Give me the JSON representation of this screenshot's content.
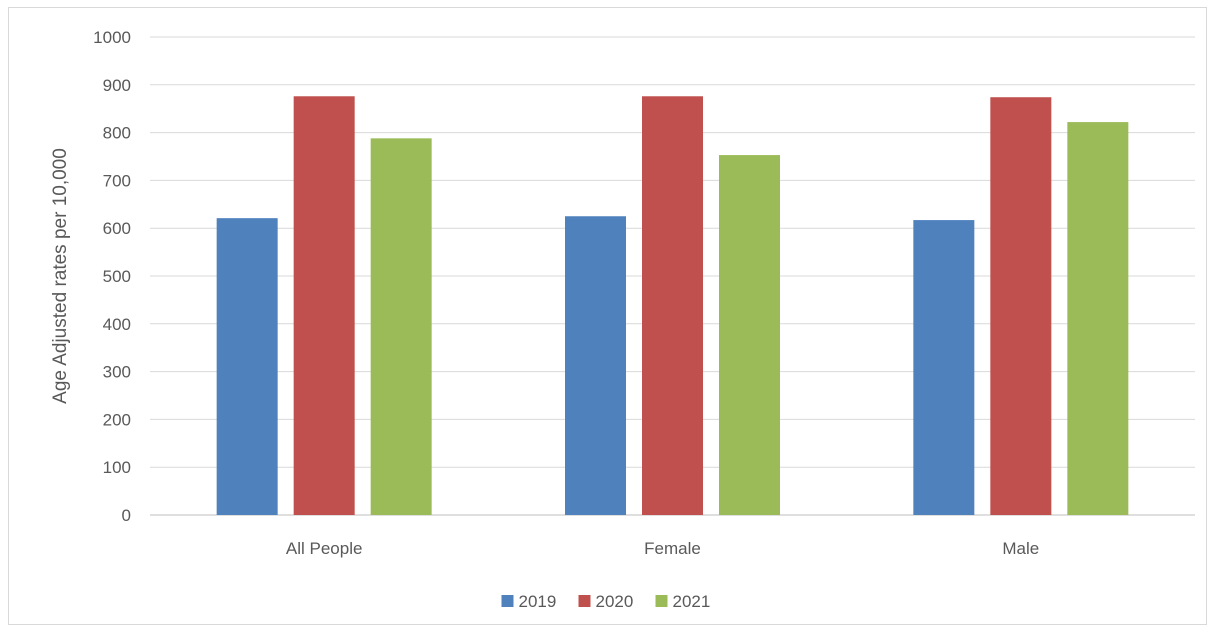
{
  "chart_data": {
    "type": "bar",
    "categories": [
      "All People",
      "Female",
      "Male"
    ],
    "series": [
      {
        "name": "2019",
        "color": "#4f81bd",
        "values": [
          621,
          625,
          617
        ]
      },
      {
        "name": "2020",
        "color": "#c0504d",
        "values": [
          876,
          876,
          874
        ]
      },
      {
        "name": "2021",
        "color": "#9bbb59",
        "values": [
          788,
          753,
          822
        ]
      }
    ],
    "ylabel": "Age Adjusted rates per 10,000",
    "ylim": [
      0,
      1000
    ],
    "yticks": [
      0,
      100,
      200,
      300,
      400,
      500,
      600,
      700,
      800,
      900,
      1000
    ],
    "grid": true,
    "legend": "bottom"
  }
}
